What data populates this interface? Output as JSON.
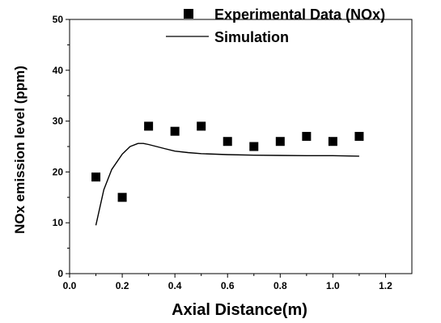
{
  "chart_data": {
    "type": "scatter",
    "title": "",
    "xlabel": "Axial Distance(m)",
    "ylabel": "NOx emission level (ppm)",
    "xlim": [
      0.0,
      1.3
    ],
    "ylim": [
      0,
      50
    ],
    "x_ticks": [
      "0.0",
      "0.2",
      "0.4",
      "0.6",
      "0.8",
      "1.0",
      "1.2"
    ],
    "y_ticks": [
      "0",
      "10",
      "20",
      "30",
      "40",
      "50"
    ],
    "grid": false,
    "legend_position": "top-right",
    "series": [
      {
        "name": "Experimental Data (NOx)",
        "kind": "scatter",
        "marker": "square",
        "color": "#000000",
        "x": [
          0.1,
          0.2,
          0.3,
          0.4,
          0.5,
          0.6,
          0.7,
          0.8,
          0.9,
          1.0,
          1.1
        ],
        "y": [
          19,
          15,
          29,
          28,
          29,
          26,
          25,
          26,
          27,
          26,
          27
        ]
      },
      {
        "name": "Simulation",
        "kind": "line",
        "color": "#000000",
        "x": [
          0.1,
          0.13,
          0.16,
          0.2,
          0.23,
          0.26,
          0.28,
          0.3,
          0.33,
          0.36,
          0.4,
          0.45,
          0.5,
          0.6,
          0.7,
          0.8,
          0.9,
          1.0,
          1.1
        ],
        "y": [
          9.5,
          16.5,
          20.5,
          23.5,
          25.0,
          25.6,
          25.6,
          25.4,
          25.0,
          24.6,
          24.1,
          23.8,
          23.6,
          23.4,
          23.3,
          23.25,
          23.2,
          23.2,
          23.1
        ]
      }
    ]
  }
}
